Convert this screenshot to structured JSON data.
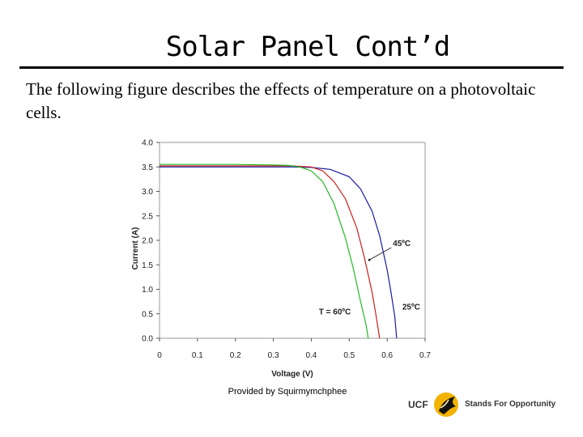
{
  "slide": {
    "title": "Solar Panel Cont’d",
    "body": "The following figure describes the effects of temperature on a photovoltaic cells.",
    "credit": "Provided by Squirmymchphee"
  },
  "logo": {
    "ucf": "UCF",
    "tagline": "Stands For Opportunity",
    "icon": "pegasus-icon",
    "accent": "#f2b300"
  },
  "chart_data": {
    "type": "line",
    "xlabel": "Voltage (V)",
    "ylabel": "Current (A)",
    "xlim": [
      0,
      0.7
    ],
    "ylim": [
      0,
      4.0
    ],
    "xticks": [
      "0",
      "0.1",
      "0.2",
      "0.3",
      "0.4",
      "0.5",
      "0.6",
      "0.7"
    ],
    "yticks": [
      "0.0",
      "0.5",
      "1.0",
      "1.5",
      "2.0",
      "2.5",
      "3.0",
      "3.5",
      "4.0"
    ],
    "grid": false,
    "series": [
      {
        "color": "#1a1aa6",
        "x": [
          0,
          0.1,
          0.2,
          0.3,
          0.35,
          0.4,
          0.45,
          0.5,
          0.53,
          0.56,
          0.58,
          0.6,
          0.61,
          0.62,
          0.625
        ],
        "y": [
          3.5,
          3.5,
          3.5,
          3.5,
          3.5,
          3.49,
          3.45,
          3.3,
          3.05,
          2.6,
          2.1,
          1.4,
          0.95,
          0.45,
          0.0
        ]
      },
      {
        "color": "#cc1f1f",
        "x": [
          0,
          0.1,
          0.2,
          0.3,
          0.35,
          0.4,
          0.43,
          0.46,
          0.49,
          0.52,
          0.54,
          0.56,
          0.57,
          0.58
        ],
        "y": [
          3.52,
          3.52,
          3.52,
          3.52,
          3.52,
          3.5,
          3.42,
          3.2,
          2.85,
          2.25,
          1.65,
          0.95,
          0.5,
          0.0
        ]
      },
      {
        "color": "#22bb22",
        "x": [
          0,
          0.1,
          0.2,
          0.3,
          0.34,
          0.37,
          0.4,
          0.43,
          0.46,
          0.49,
          0.51,
          0.53,
          0.545,
          0.55
        ],
        "y": [
          3.55,
          3.55,
          3.55,
          3.54,
          3.53,
          3.5,
          3.42,
          3.2,
          2.75,
          2.05,
          1.45,
          0.75,
          0.25,
          0.0
        ]
      }
    ],
    "annotations": [
      {
        "text": "45ºC",
        "x": 0.615,
        "y": 1.95,
        "arrow_to": [
          0.553,
          1.6
        ]
      },
      {
        "text": "25ºC",
        "x": 0.64,
        "y": 0.65
      },
      {
        "text": "T = 60ºC",
        "x": 0.42,
        "y": 0.55
      }
    ]
  }
}
